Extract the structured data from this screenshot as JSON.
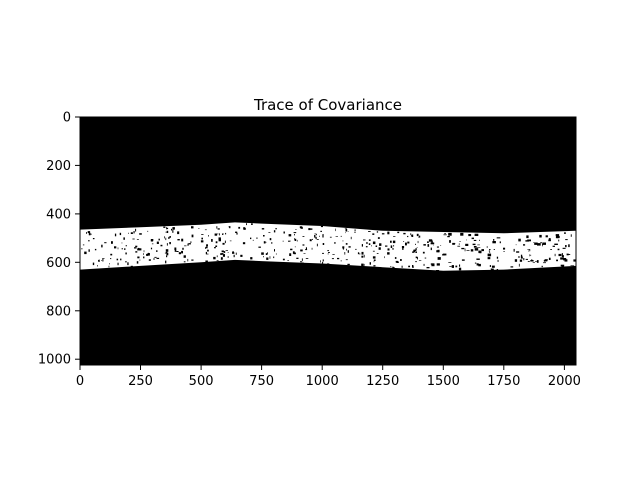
{
  "chart_data": {
    "type": "heatmap",
    "title": "Trace of Covariance",
    "xlabel": "",
    "ylabel": "",
    "xlim": [
      0,
      2048
    ],
    "ylim": [
      1024,
      0
    ],
    "x_ticks": [
      0,
      250,
      500,
      750,
      1000,
      1250,
      1500,
      1750,
      2000
    ],
    "y_ticks": [
      0,
      200,
      400,
      600,
      800,
      1000
    ],
    "x_tick_labels": [
      "0",
      "250",
      "500",
      "750",
      "1000",
      "1250",
      "1500",
      "1750",
      "2000"
    ],
    "y_tick_labels": [
      "0",
      "200",
      "400",
      "600",
      "800",
      "1000"
    ],
    "colormap": [
      "#000000",
      "#ffffff"
    ],
    "grid": false,
    "legend": "none",
    "bright_band": {
      "x": [
        0,
        250,
        500,
        640,
        750,
        1000,
        1250,
        1500,
        1750,
        2048
      ],
      "top": [
        465,
        455,
        445,
        435,
        440,
        450,
        470,
        475,
        480,
        470
      ],
      "bottom": [
        630,
        615,
        600,
        590,
        595,
        605,
        620,
        635,
        630,
        615
      ]
    }
  }
}
